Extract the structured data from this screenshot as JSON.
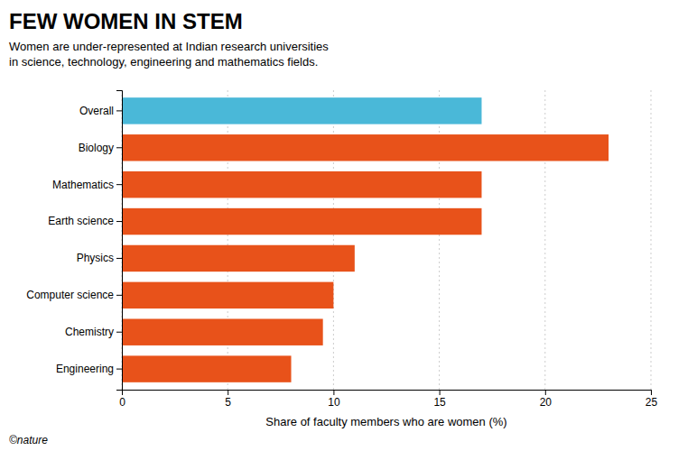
{
  "chart_data": {
    "type": "bar",
    "orientation": "horizontal",
    "title": "FEW WOMEN IN STEM",
    "subtitle": "Women are under-represented at Indian research universities\nin science, technology, engineering and mathematics fields.",
    "categories": [
      "Overall",
      "Biology",
      "Mathematics",
      "Earth science",
      "Physics",
      "Computer science",
      "Chemistry",
      "Engineering"
    ],
    "values": [
      17,
      23,
      17,
      17,
      11,
      10,
      9.5,
      8
    ],
    "colors": [
      "#4ab8d8",
      "#e8521a",
      "#e8521a",
      "#e8521a",
      "#e8521a",
      "#e8521a",
      "#e8521a",
      "#e8521a"
    ],
    "xlabel": "Share of faculty members who are women (%)",
    "xlim": [
      0,
      25
    ],
    "xticks": [
      0,
      5,
      10,
      15,
      20,
      25
    ],
    "grid": true,
    "footer": "©nature"
  }
}
